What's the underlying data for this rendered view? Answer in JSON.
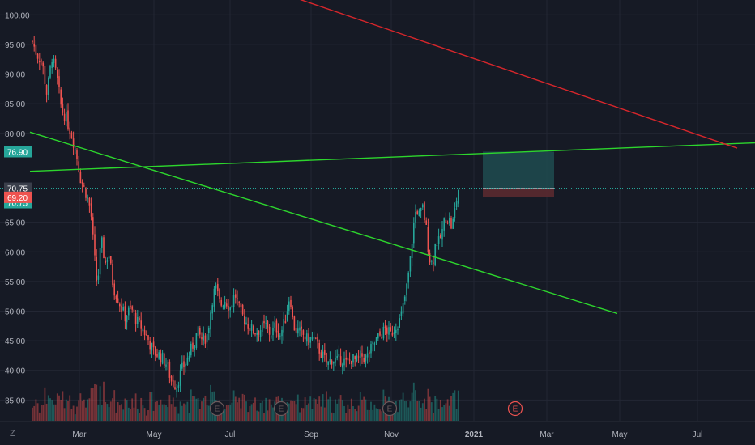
{
  "watermark": "Z",
  "colors": {
    "background": "#161a25",
    "grid": "#232734",
    "up": "#26a69a",
    "down": "#ef5350",
    "trendline_green": "#2dd62d",
    "trendline_red": "#d7262b",
    "position_profit": "#1f4c50",
    "position_loss": "#5a2a30",
    "label_text": "#b2b5be"
  },
  "chart_data": {
    "type": "candlestick",
    "symbol": "",
    "x_ticks": [
      "Mar",
      "May",
      "Jul",
      "Sep",
      "Nov",
      "2021",
      "Mar",
      "May",
      "Jul"
    ],
    "y_ticks": [
      35.0,
      40.0,
      45.0,
      50.0,
      55.0,
      60.0,
      65.0,
      80.0,
      85.0,
      90.0,
      95.0,
      100.0
    ],
    "ylim": [
      31.5,
      102.5
    ],
    "price_labels": [
      {
        "text": "76.90",
        "value": 76.9,
        "color": "#26a69a"
      },
      {
        "text": "70.75",
        "value": 70.75,
        "color": "#3a3f4b"
      },
      {
        "text": "70.75",
        "value": 70.75,
        "color": "#26a69a",
        "offset": 1
      },
      {
        "text": "69.20",
        "value": 69.2,
        "color": "#ef5350"
      }
    ],
    "candles_close_path": [
      {
        "t": 0,
        "c": 95.5
      },
      {
        "t": 5,
        "c": 93.5
      },
      {
        "t": 12,
        "c": 92.0
      },
      {
        "t": 18,
        "c": 86.5
      },
      {
        "t": 24,
        "c": 93.0
      },
      {
        "t": 30,
        "c": 89.5
      },
      {
        "t": 36,
        "c": 84.0
      },
      {
        "t": 42,
        "c": 82.5
      },
      {
        "t": 50,
        "c": 79.0
      },
      {
        "t": 55,
        "c": 76.0
      },
      {
        "t": 60,
        "c": 72.0
      },
      {
        "t": 66,
        "c": 70.0
      },
      {
        "t": 72,
        "c": 67.0
      },
      {
        "t": 76,
        "c": 60.0
      },
      {
        "t": 80,
        "c": 54.0
      },
      {
        "t": 85,
        "c": 62.0
      },
      {
        "t": 90,
        "c": 58.0
      },
      {
        "t": 94,
        "c": 60.0
      },
      {
        "t": 100,
        "c": 54.0
      },
      {
        "t": 106,
        "c": 52.0
      },
      {
        "t": 114,
        "c": 49.0
      },
      {
        "t": 122,
        "c": 50.5
      },
      {
        "t": 130,
        "c": 48.0
      },
      {
        "t": 136,
        "c": 47.0
      },
      {
        "t": 142,
        "c": 45.5
      },
      {
        "t": 150,
        "c": 43.0
      },
      {
        "t": 158,
        "c": 42.5
      },
      {
        "t": 166,
        "c": 41.0
      },
      {
        "t": 172,
        "c": 38.0
      },
      {
        "t": 178,
        "c": 37.5
      },
      {
        "t": 184,
        "c": 40.0
      },
      {
        "t": 190,
        "c": 41.5
      },
      {
        "t": 196,
        "c": 43.5
      },
      {
        "t": 204,
        "c": 46.5
      },
      {
        "t": 210,
        "c": 45.0
      },
      {
        "t": 216,
        "c": 46.0
      },
      {
        "t": 222,
        "c": 52.0
      },
      {
        "t": 226,
        "c": 54.0
      },
      {
        "t": 232,
        "c": 51.0
      },
      {
        "t": 238,
        "c": 52.0
      },
      {
        "t": 244,
        "c": 50.5
      },
      {
        "t": 250,
        "c": 53.0
      },
      {
        "t": 256,
        "c": 50.0
      },
      {
        "t": 262,
        "c": 48.5
      },
      {
        "t": 270,
        "c": 47.0
      },
      {
        "t": 276,
        "c": 46.5
      },
      {
        "t": 282,
        "c": 47.0
      },
      {
        "t": 288,
        "c": 47.5
      },
      {
        "t": 294,
        "c": 46.0
      },
      {
        "t": 300,
        "c": 47.5
      },
      {
        "t": 306,
        "c": 46.0
      },
      {
        "t": 312,
        "c": 48.5
      },
      {
        "t": 318,
        "c": 53.0
      },
      {
        "t": 322,
        "c": 47.5
      },
      {
        "t": 328,
        "c": 46.5
      },
      {
        "t": 334,
        "c": 46.0
      },
      {
        "t": 340,
        "c": 45.0
      },
      {
        "t": 346,
        "c": 45.5
      },
      {
        "t": 352,
        "c": 44.0
      },
      {
        "t": 358,
        "c": 42.5
      },
      {
        "t": 364,
        "c": 41.0
      },
      {
        "t": 370,
        "c": 42.0
      },
      {
        "t": 376,
        "c": 41.5
      },
      {
        "t": 382,
        "c": 42.0
      },
      {
        "t": 388,
        "c": 41.0
      },
      {
        "t": 394,
        "c": 42.0
      },
      {
        "t": 400,
        "c": 41.5
      },
      {
        "t": 406,
        "c": 42.5
      },
      {
        "t": 412,
        "c": 42.0
      },
      {
        "t": 418,
        "c": 43.5
      },
      {
        "t": 424,
        "c": 45.0
      },
      {
        "t": 430,
        "c": 46.0
      },
      {
        "t": 436,
        "c": 47.0
      },
      {
        "t": 442,
        "c": 46.0
      },
      {
        "t": 448,
        "c": 47.5
      },
      {
        "t": 454,
        "c": 48.5
      },
      {
        "t": 458,
        "c": 51.0
      },
      {
        "t": 462,
        "c": 54.0
      },
      {
        "t": 466,
        "c": 58.0
      },
      {
        "t": 470,
        "c": 64.0
      },
      {
        "t": 474,
        "c": 67.5
      },
      {
        "t": 478,
        "c": 66.0
      },
      {
        "t": 482,
        "c": 67.5
      },
      {
        "t": 486,
        "c": 64.0
      },
      {
        "t": 490,
        "c": 59.0
      },
      {
        "t": 494,
        "c": 58.0
      },
      {
        "t": 498,
        "c": 62.0
      },
      {
        "t": 502,
        "c": 61.5
      },
      {
        "t": 506,
        "c": 63.5
      },
      {
        "t": 510,
        "c": 66.0
      },
      {
        "t": 514,
        "c": 65.5
      },
      {
        "t": 518,
        "c": 64.0
      },
      {
        "t": 522,
        "c": 67.5
      },
      {
        "t": 526,
        "c": 70.75
      }
    ],
    "trendlines": [
      {
        "name": "",
        "color": "#2dd62d",
        "from": {
          "t": -3,
          "v": 73.6
        },
        "to": {
          "t": 893,
          "v": 78.4
        }
      },
      {
        "name": "",
        "color": "#2dd62d",
        "from": {
          "t": -3,
          "v": 80.2
        },
        "to": {
          "t": 722,
          "v": 49.6
        }
      },
      {
        "name": "",
        "color": "#d7262b",
        "from": {
          "t": 300,
          "v": 104.0
        },
        "to": {
          "t": 870,
          "v": 77.5
        }
      }
    ],
    "position": {
      "entry": 70.75,
      "target": 76.9,
      "stop": 69.2,
      "t_start": 556,
      "t_end": 644
    },
    "earnings_markers": [
      {
        "label": "E",
        "t": 228,
        "past": true
      },
      {
        "label": "E",
        "t": 307,
        "past": true
      },
      {
        "label": "E",
        "t": 441,
        "past": true
      },
      {
        "label": "E",
        "t": 596,
        "past": false
      }
    ],
    "grid": true
  }
}
